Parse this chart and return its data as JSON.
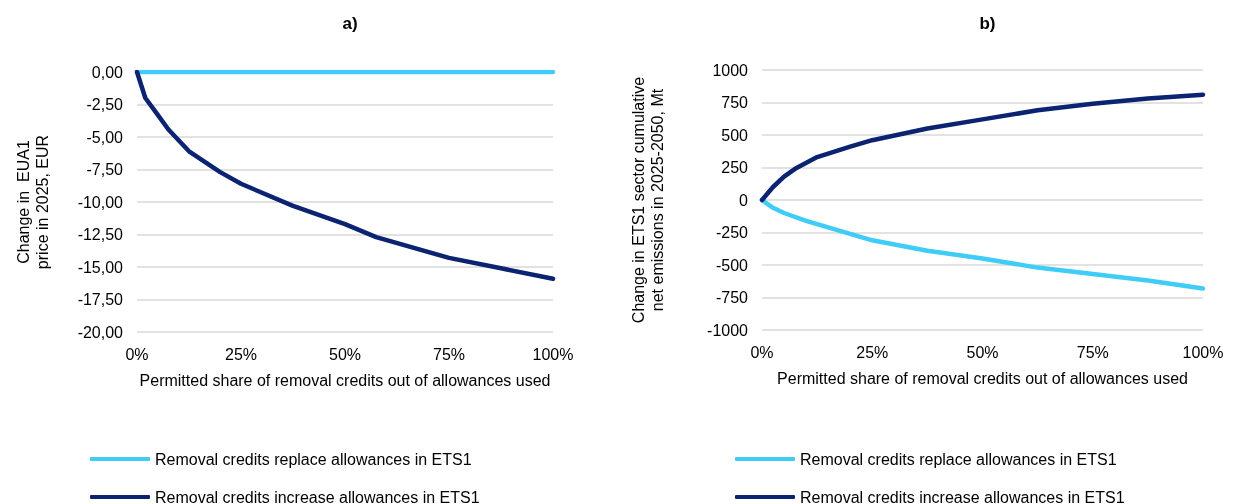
{
  "chart_data": [
    {
      "type": "line",
      "title": "a)",
      "xlabel": "Permitted share of removal credits out of allowances used",
      "ylabel": "Change in  EUA1 price in 2025, EUR",
      "series": [
        {
          "name": "Removal credits replace allowances in ETS1",
          "color": "#3fcdf7",
          "x": [
            0,
            25,
            50,
            75,
            100
          ],
          "values": [
            0,
            0,
            0,
            0,
            0
          ]
        },
        {
          "name": "Removal credits increase allowances in ETS1",
          "color": "#0b2370",
          "x": [
            0,
            2,
            5,
            7.5,
            12.5,
            20,
            25,
            37.5,
            50,
            57.5,
            75,
            87.5,
            100
          ],
          "values": [
            0,
            -2,
            -3.3,
            -4.4,
            -6.1,
            -7.7,
            -8.6,
            -10.3,
            -11.7,
            -12.7,
            -14.3,
            -15.1,
            -15.9
          ]
        }
      ],
      "xlim": [
        0,
        100
      ],
      "xticks": [
        {
          "value": 0,
          "label": "0%"
        },
        {
          "value": 25,
          "label": "25%"
        },
        {
          "value": 50,
          "label": "50%"
        },
        {
          "value": 75,
          "label": "75%"
        },
        {
          "value": 100,
          "label": "100%"
        }
      ],
      "ylim": [
        -20,
        0
      ],
      "yticks": [
        {
          "value": 0,
          "label": "0,00"
        },
        {
          "value": -2.5,
          "label": "-2,50"
        },
        {
          "value": -5,
          "label": "-5,00"
        },
        {
          "value": -7.5,
          "label": "-7,50"
        },
        {
          "value": -10,
          "label": "-10,00"
        },
        {
          "value": -12.5,
          "label": "-12,50"
        },
        {
          "value": -15,
          "label": "-15,00"
        },
        {
          "value": -17.5,
          "label": "-17,50"
        },
        {
          "value": -20,
          "label": "-20,00"
        }
      ],
      "grid": "y",
      "legend": "bottom left",
      "line_style": "solid"
    },
    {
      "type": "line",
      "title": "b)",
      "xlabel": "Permitted share of removal credits out of allowances used",
      "ylabel": "Change in ETS1 sector cumulative net emissions in 2025-2050, Mt",
      "series": [
        {
          "name": "Removal credits replace allowances in ETS1",
          "color": "#3fcdf7",
          "x": [
            0,
            2.5,
            5,
            10,
            20,
            25,
            37.5,
            50,
            62.5,
            75,
            87.5,
            100
          ],
          "values": [
            0,
            -60,
            -100,
            -160,
            -260,
            -310,
            -390,
            -450,
            -520,
            -570,
            -620,
            -680
          ]
        },
        {
          "name": "Removal credits increase allowances in ETS1",
          "color": "#0b2370",
          "x": [
            0,
            2.5,
            5,
            7.5,
            12.5,
            20,
            25,
            37.5,
            50,
            62.5,
            75,
            87.5,
            100
          ],
          "values": [
            0,
            100,
            180,
            240,
            330,
            410,
            460,
            550,
            620,
            690,
            740,
            780,
            810
          ]
        }
      ],
      "xlim": [
        0,
        100
      ],
      "xticks": [
        {
          "value": 0,
          "label": "0%"
        },
        {
          "value": 25,
          "label": "25%"
        },
        {
          "value": 50,
          "label": "50%"
        },
        {
          "value": 75,
          "label": "75%"
        },
        {
          "value": 100,
          "label": "100%"
        }
      ],
      "ylim": [
        -1000,
        1000
      ],
      "yticks": [
        -1000,
        -750,
        -500,
        -250,
        0,
        250,
        500,
        750,
        1000
      ],
      "grid": "y",
      "legend": "bottom left",
      "line_style": "solid"
    }
  ]
}
